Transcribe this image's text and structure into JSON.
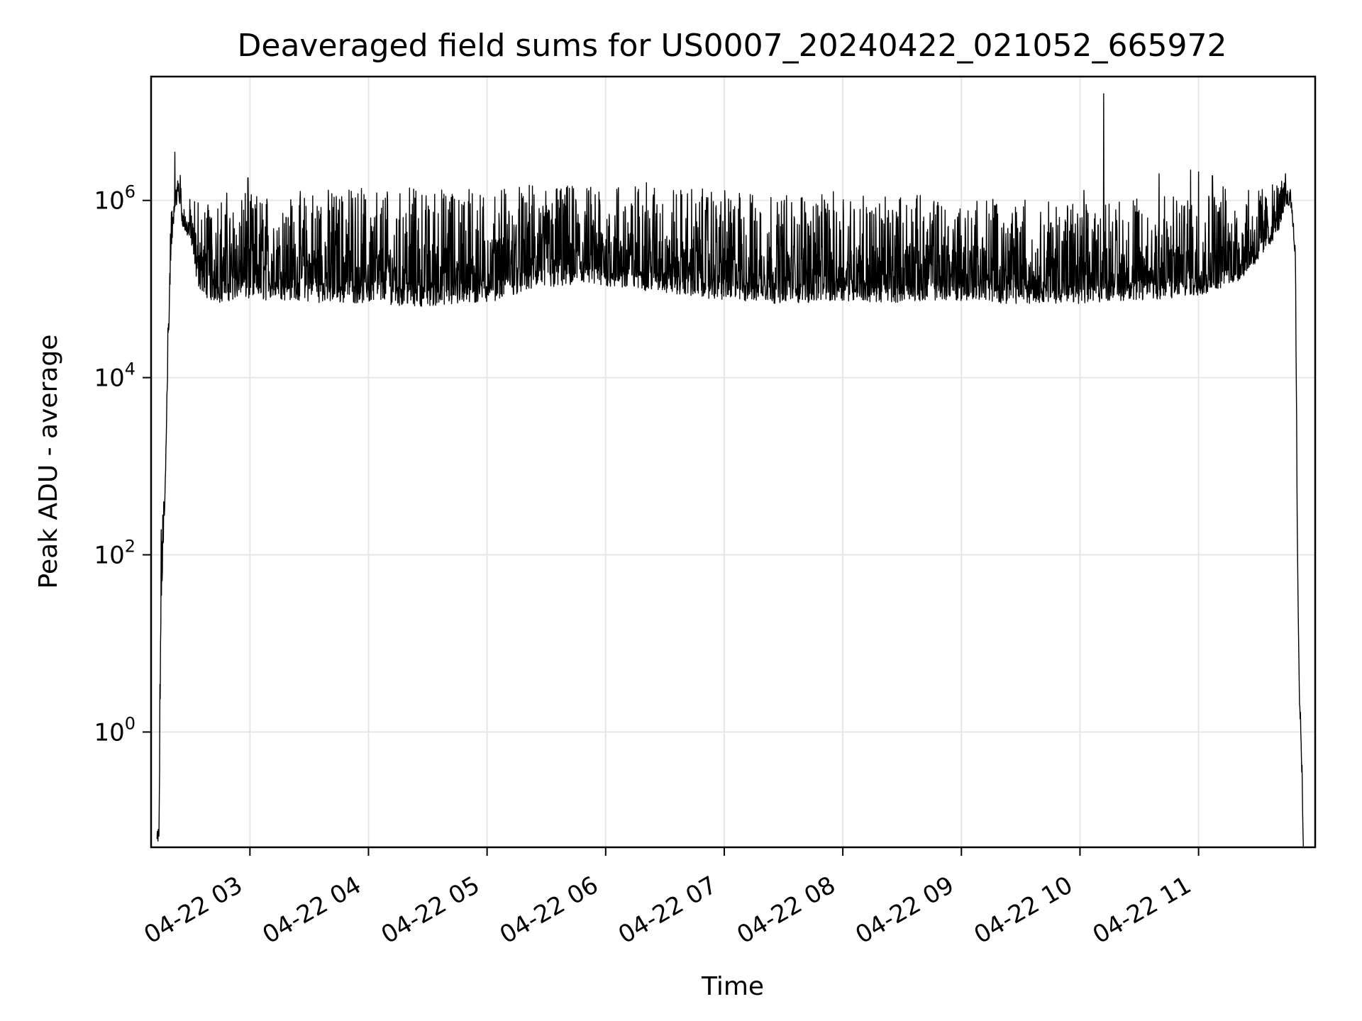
{
  "chart_data": {
    "type": "line",
    "title": "Deaveraged field sums for US0007_20240422_021052_665972",
    "xlabel": "Time",
    "ylabel": "Peak ADU - average",
    "yscale": "log",
    "ylim": [
      0.05,
      25000000
    ],
    "xlim": [
      "2024-04-22 02:10",
      "2024-04-22 11:59"
    ],
    "grid": true,
    "x_tick_labels": [
      "04-22 03",
      "04-22 04",
      "04-22 05",
      "04-22 06",
      "04-22 07",
      "04-22 08",
      "04-22 09",
      "04-22 10",
      "04-22 11"
    ],
    "x_ticks": [
      "2024-04-22 03:00",
      "2024-04-22 04:00",
      "2024-04-22 05:00",
      "2024-04-22 06:00",
      "2024-04-22 07:00",
      "2024-04-22 08:00",
      "2024-04-22 09:00",
      "2024-04-22 10:00",
      "2024-04-22 11:00"
    ],
    "y_ticks": [
      {
        "base": "10",
        "exp": "0",
        "value": 1
      },
      {
        "base": "10",
        "exp": "2",
        "value": 100
      },
      {
        "base": "10",
        "exp": "4",
        "value": 10000
      },
      {
        "base": "10",
        "exp": "6",
        "value": 1000000
      }
    ],
    "series": [
      {
        "color": "#000000",
        "x": [
          "2024-04-22 02:13",
          "2024-04-22 02:14",
          "2024-04-22 02:15",
          "2024-04-22 02:17",
          "2024-04-22 02:18",
          "2024-04-22 02:20",
          "2024-04-22 02:22",
          "2024-04-22 02:24",
          "2024-04-22 02:26",
          "2024-04-22 02:28",
          "2024-04-22 02:30",
          "2024-04-22 02:32",
          "2024-04-22 02:34",
          "2024-04-22 02:37",
          "2024-04-22 02:40",
          "2024-04-22 02:45",
          "2024-04-22 02:50",
          "2024-04-22 02:55",
          "2024-04-22 03:00",
          "2024-04-22 03:20",
          "2024-04-22 03:40",
          "2024-04-22 04:00",
          "2024-04-22 04:20",
          "2024-04-22 04:40",
          "2024-04-22 05:00",
          "2024-04-22 05:20",
          "2024-04-22 05:40",
          "2024-04-22 06:00",
          "2024-04-22 06:20",
          "2024-04-22 06:40",
          "2024-04-22 07:00",
          "2024-04-22 07:20",
          "2024-04-22 07:40",
          "2024-04-22 08:00",
          "2024-04-22 08:20",
          "2024-04-22 08:40",
          "2024-04-22 09:00",
          "2024-04-22 09:20",
          "2024-04-22 09:40",
          "2024-04-22 10:00",
          "2024-04-22 10:20",
          "2024-04-22 10:40",
          "2024-04-22 11:00",
          "2024-04-22 11:10",
          "2024-04-22 11:20",
          "2024-04-22 11:30",
          "2024-04-22 11:40",
          "2024-04-22 11:44",
          "2024-04-22 11:47",
          "2024-04-22 11:49",
          "2024-04-22 11:50",
          "2024-04-22 11:51",
          "2024-04-22 11:52",
          "2024-04-22 11:53"
        ],
        "low": [
          0.05,
          0.05,
          20,
          300,
          5000,
          200000,
          800000,
          1000000,
          500000,
          400000,
          350000,
          150000,
          100000,
          80000,
          70000,
          65000,
          70000,
          75000,
          70000,
          70000,
          65000,
          65000,
          60000,
          60000,
          65000,
          90000,
          100000,
          100000,
          90000,
          80000,
          70000,
          65000,
          65000,
          70000,
          65000,
          70000,
          70000,
          65000,
          65000,
          65000,
          70000,
          70000,
          80000,
          90000,
          110000,
          200000,
          400000,
          900000,
          800000,
          200000,
          100,
          2,
          0.5,
          0.05
        ],
        "high": [
          0.1,
          0.15,
          200,
          1000,
          20000,
          800000,
          1500000,
          3500000,
          1000000,
          900000,
          1100000,
          1200000,
          1100000,
          1000000,
          1200000,
          1200000,
          1300000,
          1200000,
          1200000,
          1300000,
          1400000,
          1400000,
          1400000,
          1400000,
          1400000,
          1500000,
          1500000,
          1500000,
          1600000,
          1400000,
          1300000,
          1200000,
          1200000,
          1300000,
          1100000,
          1200000,
          1100000,
          1100000,
          1000000,
          900000,
          1000000,
          1100000,
          1200000,
          1500000,
          1400000,
          1300000,
          1600000,
          1700000,
          1300000,
          300000,
          300,
          6,
          1.5,
          0.1
        ],
        "spikes": [
          {
            "x": "2024-04-22 02:22",
            "y": 3500000
          },
          {
            "x": "2024-04-22 02:59",
            "y": 1800000
          },
          {
            "x": "2024-04-22 10:12",
            "y": 16000000
          },
          {
            "x": "2024-04-22 10:02",
            "y": 1300000
          },
          {
            "x": "2024-04-22 10:40",
            "y": 2000000
          },
          {
            "x": "2024-04-22 10:56",
            "y": 2200000
          },
          {
            "x": "2024-04-22 11:00",
            "y": 2100000
          },
          {
            "x": "2024-04-22 11:07",
            "y": 1900000
          },
          {
            "x": "2024-04-22 11:44",
            "y": 2000000
          }
        ]
      }
    ]
  }
}
